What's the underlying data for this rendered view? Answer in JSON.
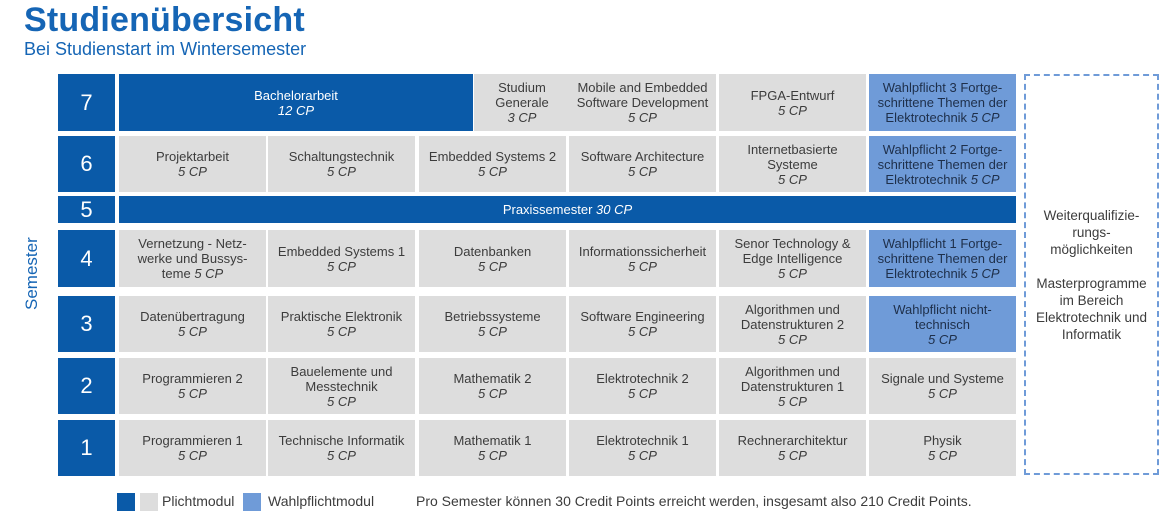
{
  "title": "Studienübersicht",
  "subtitle": "Bei Studienstart im Wintersemester",
  "axis_label": "Semester",
  "colors": {
    "brand": "#0a5aa8",
    "pflicht": "#dddddd",
    "wahlpflicht": "#6f9bd8"
  },
  "rows": [
    {
      "semester": "7",
      "modules": [
        {
          "lines": [
            "Bachelorarbeit"
          ],
          "cp": "12 CP",
          "kind": "b"
        },
        {
          "lines": [
            "Studium",
            "Generale"
          ],
          "cp": "3 CP",
          "kind": "p"
        },
        {
          "lines": [
            "Mobile and Embedded",
            "Software Development"
          ],
          "cp": "5 CP",
          "kind": "p"
        },
        {
          "lines": [
            "FPGA-Entwurf"
          ],
          "cp": "5 CP",
          "kind": "p"
        },
        {
          "lines": [
            "Wahlpflicht 3 Fortge-",
            "schrittene Themen der",
            "Elektrotechnik"
          ],
          "cp": "5 CP",
          "kind": "w",
          "cpInline": true
        }
      ]
    },
    {
      "semester": "6",
      "modules": [
        {
          "lines": [
            "Projektarbeit"
          ],
          "cp": "5 CP",
          "kind": "p"
        },
        {
          "lines": [
            "Schaltungstechnik"
          ],
          "cp": "5 CP",
          "kind": "p"
        },
        {
          "lines": [
            "Embedded Systems 2"
          ],
          "cp": "5 CP",
          "kind": "p"
        },
        {
          "lines": [
            "Software Architecture"
          ],
          "cp": "5 CP",
          "kind": "p"
        },
        {
          "lines": [
            "Internetbasierte",
            "Systeme"
          ],
          "cp": "5 CP",
          "kind": "p"
        },
        {
          "lines": [
            "Wahlpflicht 2 Fortge-",
            "schrittene Themen der",
            "Elektrotechnik"
          ],
          "cp": "5 CP",
          "kind": "w",
          "cpInline": true
        }
      ]
    },
    {
      "semester": "5",
      "modules": [
        {
          "lines": [
            "Praxissemester"
          ],
          "cp": "30 CP",
          "kind": "b",
          "cpInline": true
        }
      ]
    },
    {
      "semester": "4",
      "modules": [
        {
          "lines": [
            "Vernetzung - Netz-",
            "werke und Bussys-",
            "teme"
          ],
          "cp": "5 CP",
          "kind": "p",
          "cpInline": true
        },
        {
          "lines": [
            "Embedded Systems 1"
          ],
          "cp": "5 CP",
          "kind": "p"
        },
        {
          "lines": [
            "Datenbanken"
          ],
          "cp": "5 CP",
          "kind": "p"
        },
        {
          "lines": [
            "Informationssicherheit"
          ],
          "cp": "5 CP",
          "kind": "p"
        },
        {
          "lines": [
            "Senor Technology &",
            "Edge Intelligence"
          ],
          "cp": "5 CP",
          "kind": "p"
        },
        {
          "lines": [
            "Wahlpflicht 1 Fortge-",
            "schrittene Themen der",
            "Elektrotechnik"
          ],
          "cp": "5 CP",
          "kind": "w",
          "cpInline": true
        }
      ]
    },
    {
      "semester": "3",
      "modules": [
        {
          "lines": [
            "Datenübertragung"
          ],
          "cp": "5 CP",
          "kind": "p"
        },
        {
          "lines": [
            "Praktische Elektronik"
          ],
          "cp": "5 CP",
          "kind": "p"
        },
        {
          "lines": [
            "Betriebssysteme"
          ],
          "cp": "5 CP",
          "kind": "p"
        },
        {
          "lines": [
            "Software Engineering"
          ],
          "cp": "5 CP",
          "kind": "p"
        },
        {
          "lines": [
            "Algorithmen und",
            "Datenstrukturen 2"
          ],
          "cp": "5 CP",
          "kind": "p"
        },
        {
          "lines": [
            "Wahlpflicht nicht-",
            "technisch"
          ],
          "cp": "5 CP",
          "kind": "w"
        }
      ]
    },
    {
      "semester": "2",
      "modules": [
        {
          "lines": [
            "Programmieren 2"
          ],
          "cp": "5 CP",
          "kind": "p"
        },
        {
          "lines": [
            "Bauelemente und",
            "Messtechnik"
          ],
          "cp": "5 CP",
          "kind": "p"
        },
        {
          "lines": [
            "Mathematik 2"
          ],
          "cp": "5 CP",
          "kind": "p"
        },
        {
          "lines": [
            "Elektrotechnik 2"
          ],
          "cp": "5 CP",
          "kind": "p"
        },
        {
          "lines": [
            "Algorithmen und",
            "Datenstrukturen 1"
          ],
          "cp": "5 CP",
          "kind": "p"
        },
        {
          "lines": [
            "Signale und Systeme"
          ],
          "cp": "5 CP",
          "kind": "p"
        }
      ]
    },
    {
      "semester": "1",
      "modules": [
        {
          "lines": [
            "Programmieren 1"
          ],
          "cp": "5 CP",
          "kind": "p"
        },
        {
          "lines": [
            "Technische Informatik"
          ],
          "cp": "5 CP",
          "kind": "p"
        },
        {
          "lines": [
            "Mathematik 1"
          ],
          "cp": "5 CP",
          "kind": "p"
        },
        {
          "lines": [
            "Elektrotechnik 1"
          ],
          "cp": "5 CP",
          "kind": "p"
        },
        {
          "lines": [
            "Rechnerarchitektur"
          ],
          "cp": "5 CP",
          "kind": "p"
        },
        {
          "lines": [
            "Physik"
          ],
          "cp": "5 CP",
          "kind": "p"
        }
      ]
    }
  ],
  "side": {
    "block1": [
      "Weiterqualifizie-",
      "rungs-",
      "möglichkeiten"
    ],
    "block2": [
      "Masterprogramme",
      "im Bereich",
      "Elektrotechnik und",
      "Informatik"
    ]
  },
  "legend": {
    "pflicht_label": "Plichtmodul",
    "wahlpflicht_label": "Wahlpflichtmodul",
    "note": "Pro Semester können 30 Credit Points erreicht werden, insgesamt also 210 Credit Points."
  }
}
